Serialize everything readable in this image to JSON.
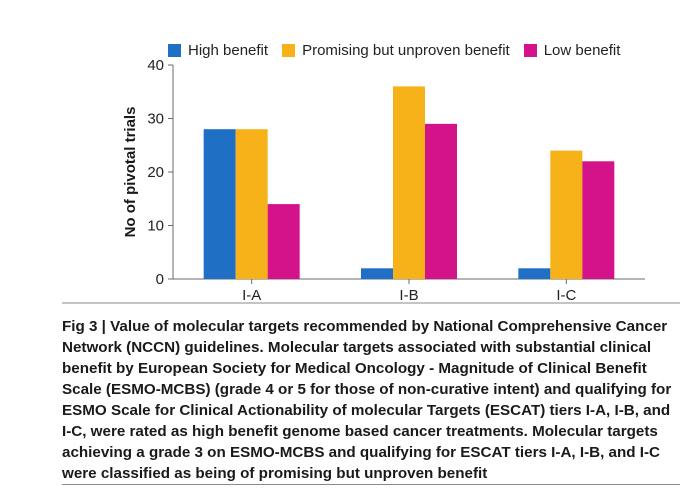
{
  "chart_data": {
    "type": "bar",
    "categories": [
      "I-A",
      "I-B",
      "I-C"
    ],
    "series": [
      {
        "name": "High benefit",
        "color": "#1f6fc5",
        "values": [
          28,
          2,
          2
        ]
      },
      {
        "name": "Promising but unproven benefit",
        "color": "#f7b21a",
        "values": [
          28,
          36,
          24
        ]
      },
      {
        "name": "Low benefit",
        "color": "#d4138a",
        "values": [
          14,
          29,
          22
        ]
      }
    ],
    "ylabel": "No of pivotal trials",
    "xlabel": "",
    "ylim": [
      0,
      40
    ],
    "yticks": [
      0,
      10,
      20,
      30,
      40
    ],
    "grid": false,
    "legend_position": "top"
  },
  "caption": {
    "lead": "Fig 3 | Value of molecular targets recommended by National Comprehensive Cancer Network (NCCN) guidelines.",
    "body": "Molecular targets associated with substantial clinical benefit by European Society for Medical Oncology - Magnitude of Clinical Benefit Scale (ESMO-MCBS) (grade 4 or 5 for those of non-curative intent) and qualifying for ESMO Scale for Clinical Actionability of molecular Targets (ESCAT) tiers I-A, I-B, and I-C, were rated as high benefit genome based cancer treatments. Molecular targets achieving a grade 3 on ESMO-MCBS and qualifying for ESCAT tiers I-A, I-B, and I-C were classified as being of promising but unproven benefit"
  }
}
